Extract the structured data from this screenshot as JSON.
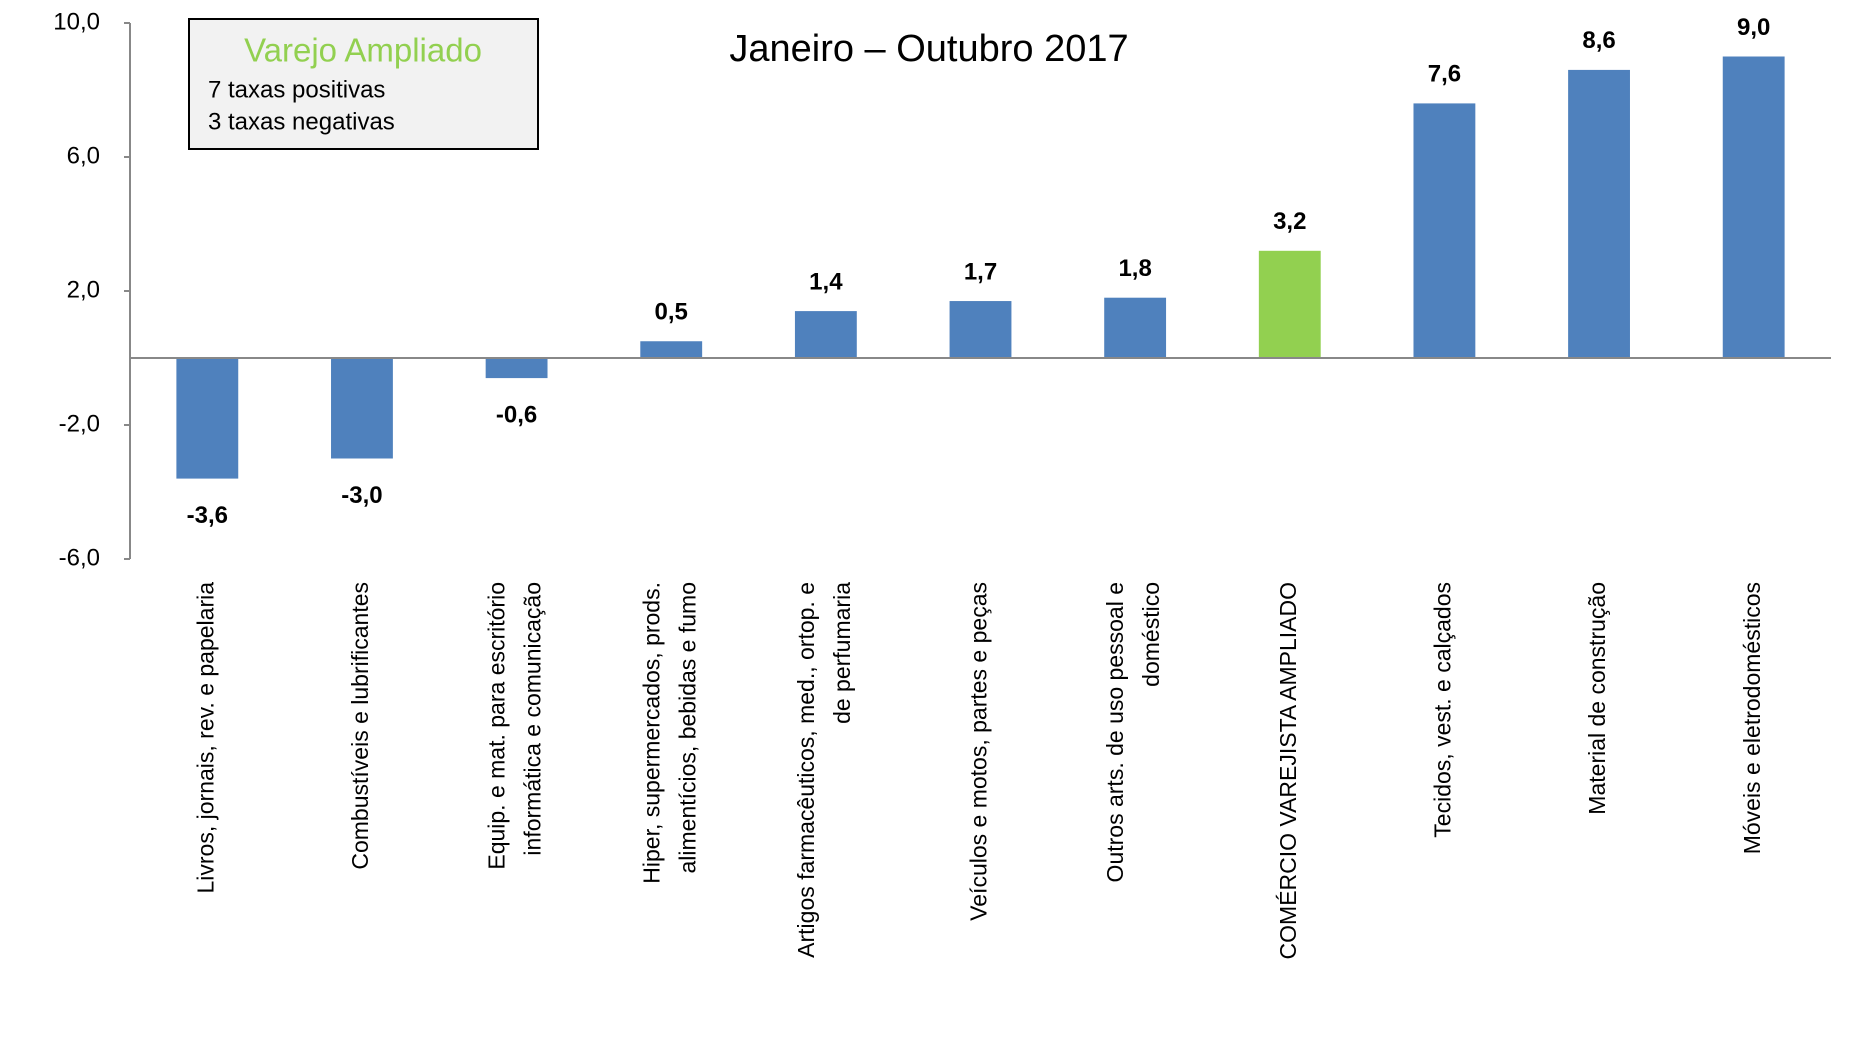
{
  "chart_data": {
    "type": "bar",
    "title": "Janeiro – Outubro 2017",
    "annotation": {
      "title": "Varejo Ampliado",
      "lines": [
        "7 taxas positivas",
        "3 taxas negativas"
      ]
    },
    "categories": [
      [
        "Livros, jornais, rev. e papelaria"
      ],
      [
        "Combustíveis e lubrificantes"
      ],
      [
        "Equip. e mat. para escritório",
        "informática e comunicação"
      ],
      [
        "Hiper, supermercados, prods.",
        "alimentícios, bebidas e fumo"
      ],
      [
        "Artigos farmacêuticos, med., ortop. e",
        "de perfumaria"
      ],
      [
        "Veículos e motos, partes e peças"
      ],
      [
        "Outros arts. de uso pessoal e",
        "doméstico"
      ],
      [
        "COMÉRCIO VAREJISTA AMPLIADO"
      ],
      [
        "Tecidos, vest. e calçados"
      ],
      [
        "Material de construção"
      ],
      [
        "Móveis e eletrodomésticos"
      ]
    ],
    "values": [
      -3.6,
      -3.0,
      -0.6,
      0.5,
      1.4,
      1.7,
      1.8,
      3.2,
      7.6,
      8.6,
      9.0
    ],
    "value_labels": [
      "-3,6",
      "-3,0",
      "-0,6",
      "0,5",
      "1,4",
      "1,7",
      "1,8",
      "3,2",
      "7,6",
      "8,6",
      "9,0"
    ],
    "colors": [
      "#4f81bd",
      "#4f81bd",
      "#4f81bd",
      "#4f81bd",
      "#4f81bd",
      "#4f81bd",
      "#4f81bd",
      "#92d050",
      "#4f81bd",
      "#4f81bd",
      "#4f81bd"
    ],
    "ylim": [
      -6,
      10
    ],
    "yticks": [
      {
        "value": -6,
        "label": "-6,0"
      },
      {
        "value": -2,
        "label": "-2,0"
      },
      {
        "value": 2,
        "label": "2,0"
      },
      {
        "value": 6,
        "label": "6,0"
      },
      {
        "value": 10,
        "label": "10,0"
      }
    ],
    "grid": false
  }
}
